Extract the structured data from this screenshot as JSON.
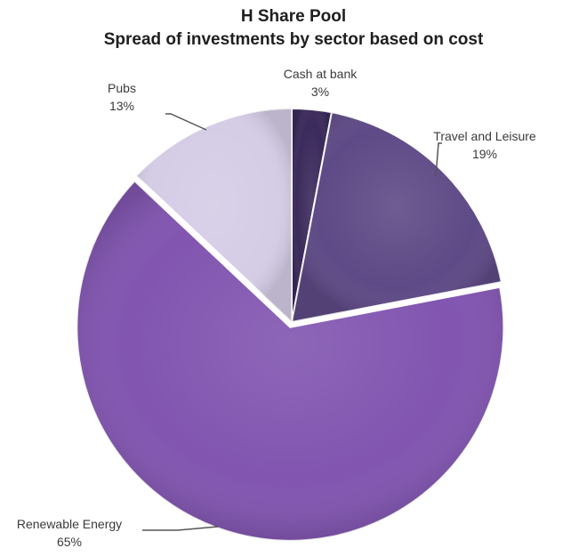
{
  "chart_data": {
    "type": "pie",
    "title": "H Share Pool",
    "subtitle": "Spread of investments by sector based on cost",
    "slices": [
      {
        "label": "Cash at bank",
        "value": 3,
        "value_label": "3%",
        "color": "#3b2a5c"
      },
      {
        "label": "Travel and Leisure",
        "value": 19,
        "value_label": "19%",
        "color": "#5e4a86"
      },
      {
        "label": "Renewable Energy",
        "value": 65,
        "value_label": "65%",
        "color": "#8155b0"
      },
      {
        "label": "Pubs",
        "value": 13,
        "value_label": "13%",
        "color": "#d5cce6"
      }
    ],
    "start_angle_deg": 0,
    "direction": "clockwise"
  }
}
